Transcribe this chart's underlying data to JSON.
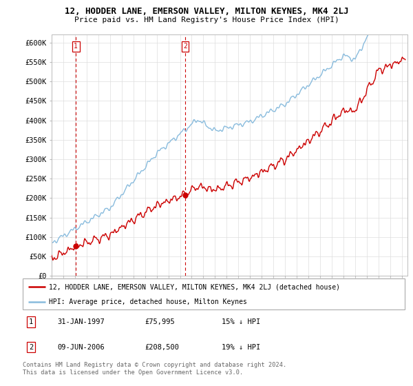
{
  "title": "12, HODDER LANE, EMERSON VALLEY, MILTON KEYNES, MK4 2LJ",
  "subtitle": "Price paid vs. HM Land Registry's House Price Index (HPI)",
  "ylim": [
    0,
    620000
  ],
  "yticks": [
    0,
    50000,
    100000,
    150000,
    200000,
    250000,
    300000,
    350000,
    400000,
    450000,
    500000,
    550000,
    600000
  ],
  "ytick_labels": [
    "£0",
    "£50K",
    "£100K",
    "£150K",
    "£200K",
    "£250K",
    "£300K",
    "£350K",
    "£400K",
    "£450K",
    "£500K",
    "£550K",
    "£600K"
  ],
  "xlim_left": 1995,
  "xlim_right": 2025.5,
  "sale1_x": 1997.08,
  "sale1_y": 75995,
  "sale1_label": "1",
  "sale1_date": "31-JAN-1997",
  "sale1_price": "£75,995",
  "sale1_hpi": "15% ↓ HPI",
  "sale2_x": 2006.44,
  "sale2_y": 208500,
  "sale2_label": "2",
  "sale2_date": "09-JUN-2006",
  "sale2_price": "£208,500",
  "sale2_hpi": "19% ↓ HPI",
  "line_color_red": "#cc0000",
  "line_color_blue": "#88bbdd",
  "grid_color": "#dddddd",
  "legend_label_red": "12, HODDER LANE, EMERSON VALLEY, MILTON KEYNES, MK4 2LJ (detached house)",
  "legend_label_blue": "HPI: Average price, detached house, Milton Keynes",
  "footer": "Contains HM Land Registry data © Crown copyright and database right 2024.\nThis data is licensed under the Open Government Licence v3.0.",
  "title_fontsize": 9,
  "subtitle_fontsize": 8,
  "tick_fontsize": 7.5,
  "label_fontsize": 8
}
